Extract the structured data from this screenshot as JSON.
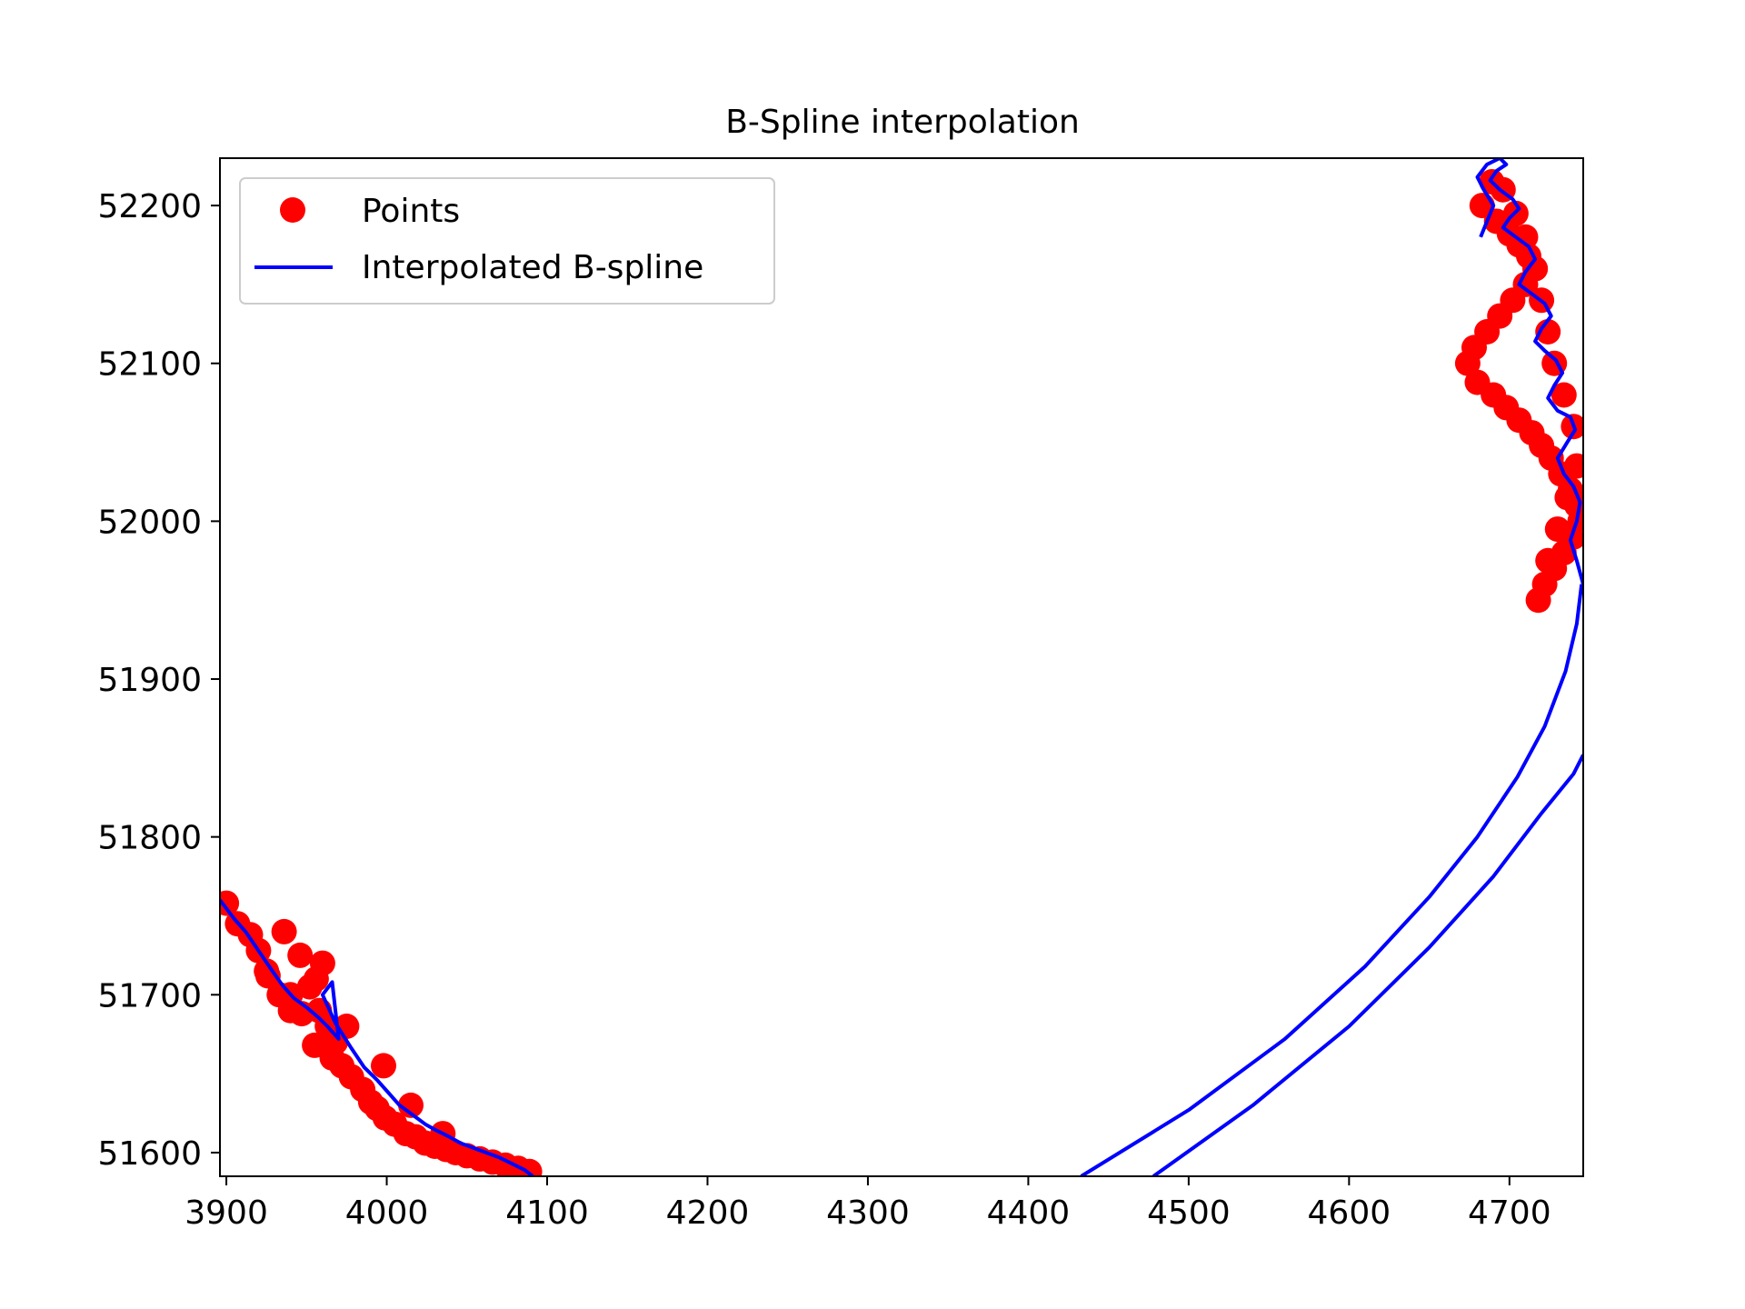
{
  "chart_data": {
    "type": "scatter",
    "title": "B-Spline interpolation",
    "xlabel": "",
    "ylabel": "",
    "xlim": [
      3896,
      4746
    ],
    "ylim": [
      51585,
      52230
    ],
    "x_ticks": [
      3900,
      4000,
      4100,
      4200,
      4300,
      4400,
      4500,
      4600,
      4700
    ],
    "y_ticks": [
      51600,
      51700,
      51800,
      51900,
      52000,
      52100,
      52200
    ],
    "grid": false,
    "legend": {
      "placement": "top-left"
    },
    "series": [
      {
        "name": "Points",
        "kind": "scatter",
        "color": "#ff0000",
        "x": [
          3900,
          3907,
          3915,
          3920,
          3926,
          3933,
          3940,
          3936,
          3946,
          3952,
          3958,
          3963,
          3968,
          3960,
          3956,
          3947,
          3955,
          3966,
          3972,
          3978,
          3985,
          3990,
          3994,
          3999,
          4005,
          4012,
          4018,
          4024,
          4030,
          4037,
          4043,
          4050,
          4058,
          4066,
          4074,
          4082,
          4089,
          4035,
          4015,
          3998,
          3975,
          3940,
          3925,
          4689,
          4683,
          4692,
          4700,
          4706,
          4712,
          4716,
          4710,
          4702,
          4694,
          4686,
          4678,
          4674,
          4680,
          4690,
          4698,
          4706,
          4714,
          4720,
          4726,
          4732,
          4738,
          4742,
          4744,
          4740,
          4734,
          4728,
          4722,
          4718,
          4724,
          4730,
          4736,
          4742,
          4740,
          4734,
          4728,
          4724,
          4720,
          4716,
          4710,
          4704,
          4696
        ],
        "y": [
          51758,
          51745,
          51738,
          51728,
          51712,
          51700,
          51690,
          51740,
          51725,
          51705,
          51690,
          51680,
          51670,
          51720,
          51710,
          51688,
          51668,
          51660,
          51655,
          51648,
          51640,
          51632,
          51628,
          51622,
          51618,
          51612,
          51610,
          51606,
          51604,
          51602,
          51600,
          51598,
          51596,
          51594,
          51592,
          51590,
          51588,
          51612,
          51630,
          51655,
          51680,
          51700,
          51715,
          52215,
          52200,
          52190,
          52182,
          52175,
          52168,
          52160,
          52150,
          52140,
          52130,
          52120,
          52110,
          52100,
          52088,
          52080,
          52072,
          52064,
          52056,
          52048,
          52040,
          52030,
          52020,
          52010,
          52000,
          51990,
          51980,
          51970,
          51960,
          51950,
          51975,
          51995,
          52015,
          52035,
          52060,
          52080,
          52100,
          52120,
          52140,
          52160,
          52180,
          52195,
          52210
        ]
      },
      {
        "name": "Interpolated B-spline",
        "kind": "line",
        "color": "#0000ff",
        "x": [
          3896,
          3905,
          3912,
          3920,
          3928,
          3935,
          3942,
          3950,
          3957,
          3963,
          3970,
          3966,
          3960,
          3968,
          3978,
          3986,
          3994,
          4001,
          4008,
          4016,
          4024,
          4031,
          4039,
          4046,
          4054,
          4062,
          4070,
          4078,
          4086,
          4091
        ],
        "y": [
          51760,
          51748,
          51740,
          51728,
          51716,
          51706,
          51698,
          51692,
          51686,
          51680,
          51672,
          51708,
          51700,
          51682,
          51666,
          51654,
          51646,
          51638,
          51630,
          51624,
          51618,
          51614,
          51610,
          51606,
          51603,
          51600,
          51597,
          51593,
          51589,
          51585
        ]
      },
      {
        "name": "",
        "kind": "line",
        "color": "#0000ff",
        "x": [
          4433,
          4500,
          4560,
          4610,
          4650,
          4680,
          4705,
          4722,
          4735,
          4742,
          4745
        ],
        "y": [
          51585,
          51627,
          51672,
          51718,
          51762,
          51800,
          51838,
          51870,
          51905,
          51935,
          51960
        ]
      },
      {
        "name": "",
        "kind": "line",
        "color": "#0000ff",
        "x": [
          4478,
          4540,
          4600,
          4650,
          4690,
          4720,
          4740,
          4746
        ],
        "y": [
          51585,
          51630,
          51680,
          51730,
          51775,
          51815,
          51840,
          51852
        ]
      },
      {
        "name": "",
        "kind": "line",
        "color": "#0000ff",
        "x": [
          4746,
          4742,
          4738,
          4742,
          4744,
          4740,
          4734,
          4730,
          4736,
          4741,
          4738,
          4730,
          4724,
          4728,
          4733,
          4729,
          4722,
          4716,
          4720,
          4726,
          4722,
          4714,
          4706,
          4710,
          4716,
          4712,
          4704,
          4696,
          4700,
          4706,
          4702,
          4694,
          4688,
          4692,
          4698,
          4694,
          4686,
          4680,
          4684,
          4690,
          4686,
          4682
        ],
        "y": [
          51960,
          51975,
          51988,
          52000,
          52012,
          52022,
          52030,
          52040,
          52050,
          52058,
          52066,
          52070,
          52078,
          52086,
          52094,
          52102,
          52108,
          52114,
          52122,
          52130,
          52138,
          52144,
          52150,
          52158,
          52166,
          52174,
          52180,
          52186,
          52192,
          52198,
          52204,
          52210,
          52216,
          52222,
          52226,
          52230,
          52226,
          52218,
          52210,
          52200,
          52190,
          52180
        ]
      }
    ]
  }
}
